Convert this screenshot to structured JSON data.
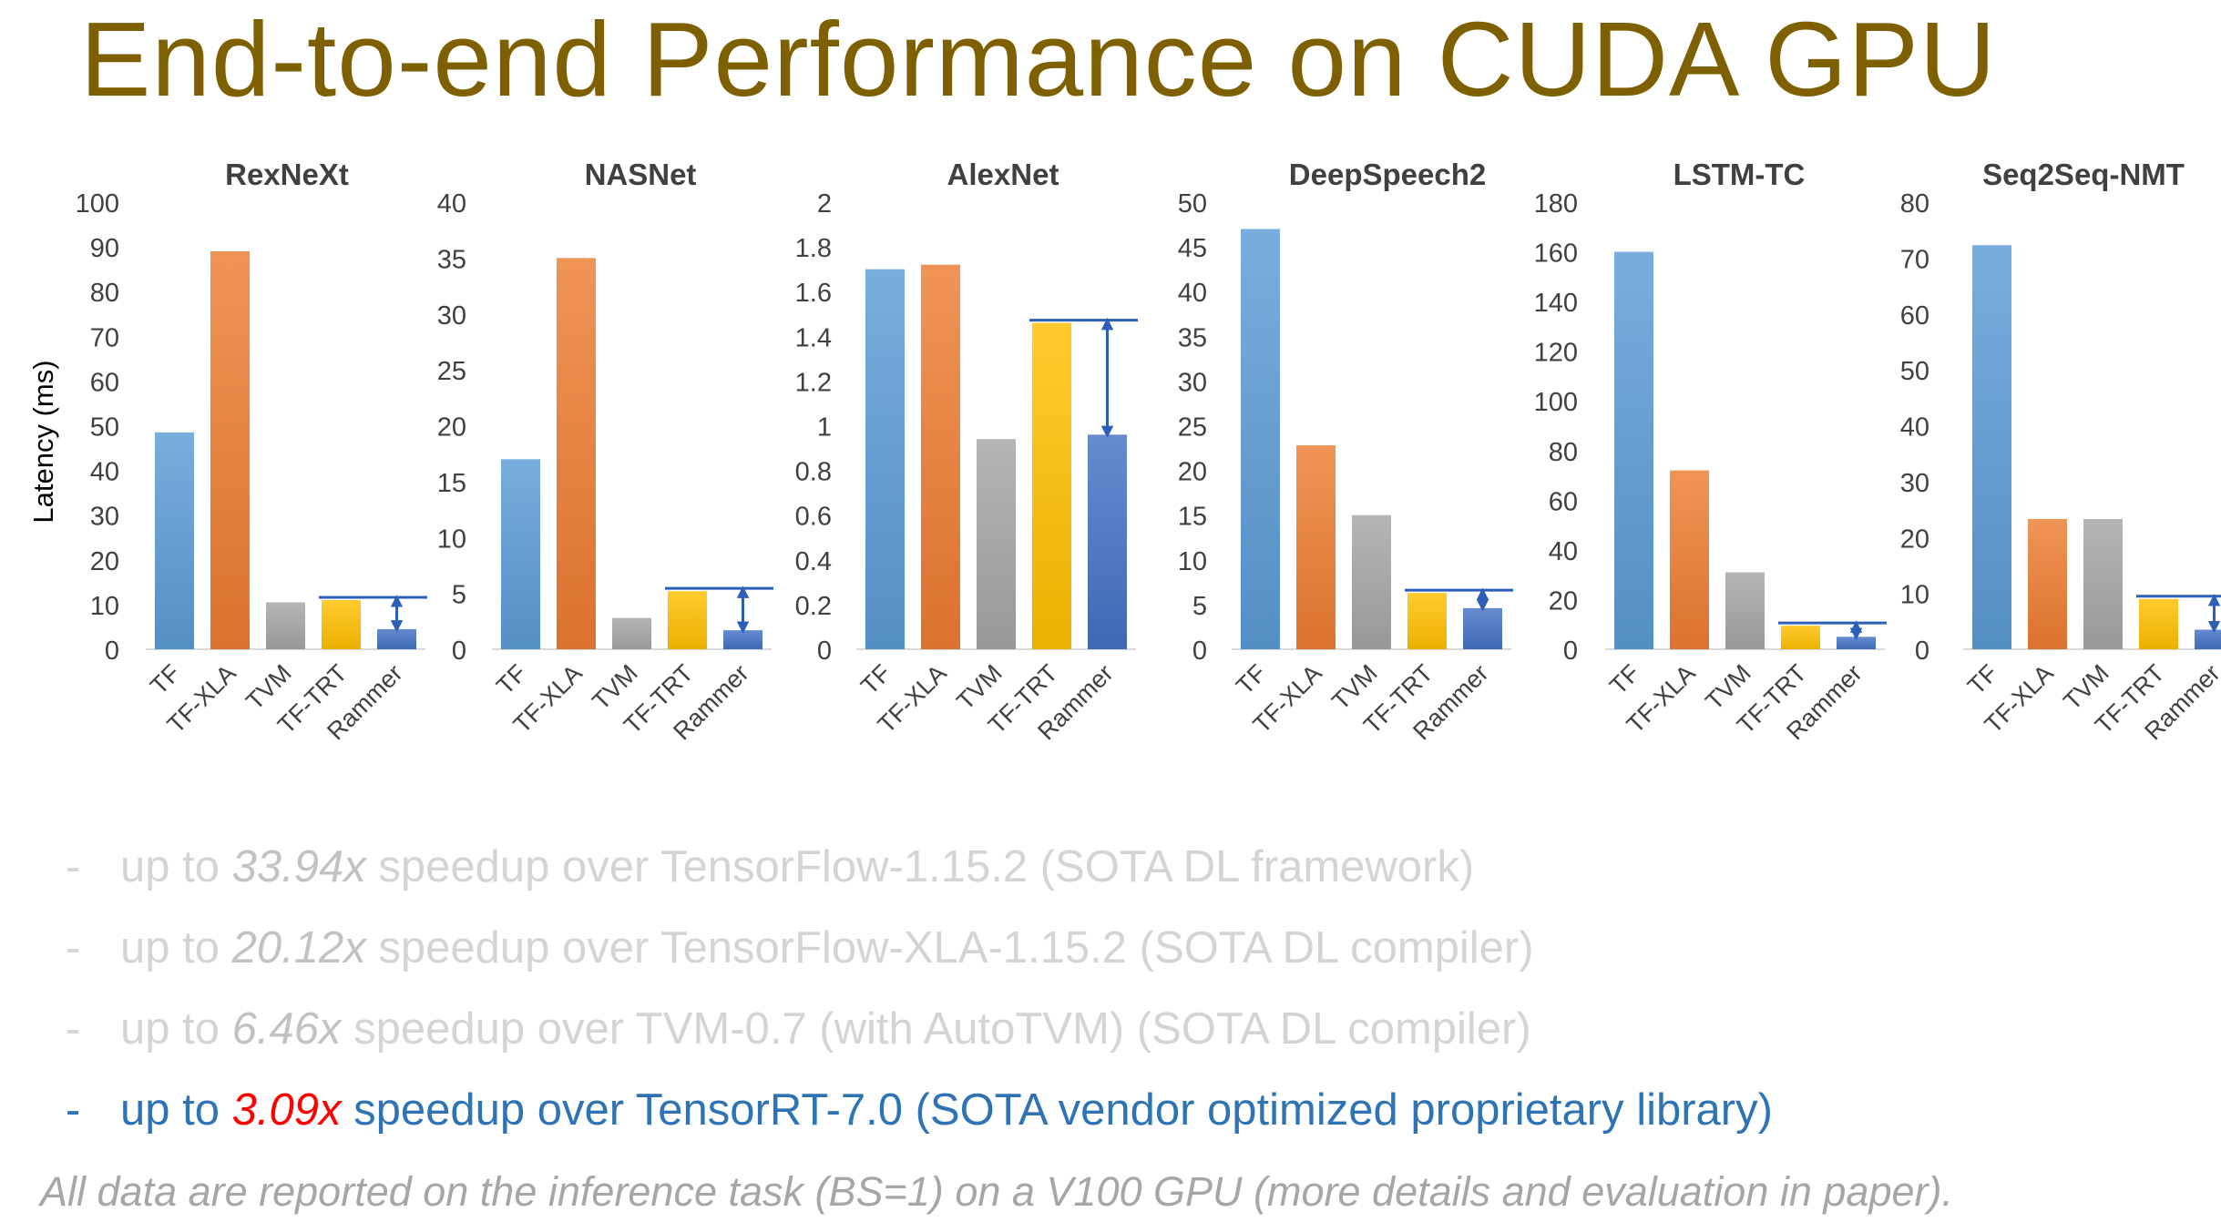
{
  "slide": {
    "title": "End-to-end Performance on CUDA GPU",
    "y_axis_label": "Latency (ms)",
    "footnote": "All data are reported on the inference task (BS=1) on a V100 GPU (more details and evaluation in paper)."
  },
  "bullets": [
    {
      "dash": "-",
      "prefix": "up to ",
      "highlight": "33.94x",
      "suffix": " speedup over TensorFlow-1.15.2 (SOTA DL framework)",
      "state": "faded"
    },
    {
      "dash": "-",
      "prefix": "up to ",
      "highlight": "20.12x",
      "suffix": " speedup over TensorFlow-XLA-1.15.2 (SOTA DL compiler)",
      "state": "faded"
    },
    {
      "dash": "-",
      "prefix": "up to ",
      "highlight": "6.46x",
      "suffix": " speedup over TVM-0.7 (with AutoTVM) (SOTA DL compiler)",
      "state": "faded"
    },
    {
      "dash": "-",
      "prefix": "up to ",
      "highlight": "3.09x",
      "suffix": " speedup over TensorRT-7.0 (SOTA vendor optimized proprietary library)",
      "state": "active"
    }
  ],
  "colors": {
    "TF": "#5b9bd5",
    "TF-XLA": "#ed7d31",
    "TVM": "#a5a5a5",
    "TF-TRT": "#ffc000",
    "Rammer": "#4472c4",
    "arrow": "#2e5fb8",
    "title": "#7f6000"
  },
  "chart_data": [
    {
      "type": "bar",
      "title": "RexNeXt",
      "categories": [
        "TF",
        "TF-XLA",
        "TVM",
        "TF-TRT",
        "Rammer"
      ],
      "values": [
        48.5,
        89,
        10.5,
        11,
        4.5
      ],
      "ylim": [
        0,
        100
      ],
      "yticks": [
        "0",
        "10",
        "20",
        "30",
        "40",
        "50",
        "60",
        "70",
        "80",
        "90",
        "100"
      ],
      "grid": false
    },
    {
      "type": "bar",
      "title": "NASNet",
      "categories": [
        "TF",
        "TF-XLA",
        "TVM",
        "TF-TRT",
        "Rammer"
      ],
      "values": [
        17,
        35,
        2.8,
        5.2,
        1.7
      ],
      "ylim": [
        0,
        40
      ],
      "yticks": [
        "0",
        "5",
        "10",
        "15",
        "20",
        "25",
        "30",
        "35",
        "40"
      ],
      "grid": false
    },
    {
      "type": "bar",
      "title": "AlexNet",
      "categories": [
        "TF",
        "TF-XLA",
        "TVM",
        "TF-TRT",
        "Rammer"
      ],
      "values": [
        1.7,
        1.72,
        0.94,
        1.46,
        0.96
      ],
      "ylim": [
        0,
        2
      ],
      "yticks": [
        "0",
        "0.2",
        "0.4",
        "0.6",
        "0.8",
        "1",
        "1.2",
        "1.4",
        "1.6",
        "1.8",
        "2"
      ],
      "grid": false
    },
    {
      "type": "bar",
      "title": "DeepSpeech2",
      "categories": [
        "TF",
        "TF-XLA",
        "TVM",
        "TF-TRT",
        "Rammer"
      ],
      "values": [
        47,
        22.8,
        15,
        6.3,
        4.6
      ],
      "ylim": [
        0,
        50
      ],
      "yticks": [
        "0",
        "5",
        "10",
        "15",
        "20",
        "25",
        "30",
        "35",
        "40",
        "45",
        "50"
      ],
      "grid": false
    },
    {
      "type": "bar",
      "title": "LSTM-TC",
      "categories": [
        "TF",
        "TF-XLA",
        "TVM",
        "TF-TRT",
        "Rammer"
      ],
      "values": [
        160,
        72,
        31,
        9.5,
        5
      ],
      "ylim": [
        0,
        180
      ],
      "yticks": [
        "0",
        "20",
        "40",
        "60",
        "80",
        "100",
        "120",
        "140",
        "160",
        "180"
      ],
      "grid": false
    },
    {
      "type": "bar",
      "title": "Seq2Seq-NMT",
      "categories": [
        "TF",
        "TF-XLA",
        "TVM",
        "TF-TRT",
        "Rammer"
      ],
      "values": [
        72.3,
        23.3,
        23.3,
        9,
        3.5
      ],
      "ylim": [
        0,
        80
      ],
      "yticks": [
        "0",
        "10",
        "20",
        "30",
        "40",
        "50",
        "60",
        "70",
        "80"
      ],
      "grid": false
    }
  ]
}
